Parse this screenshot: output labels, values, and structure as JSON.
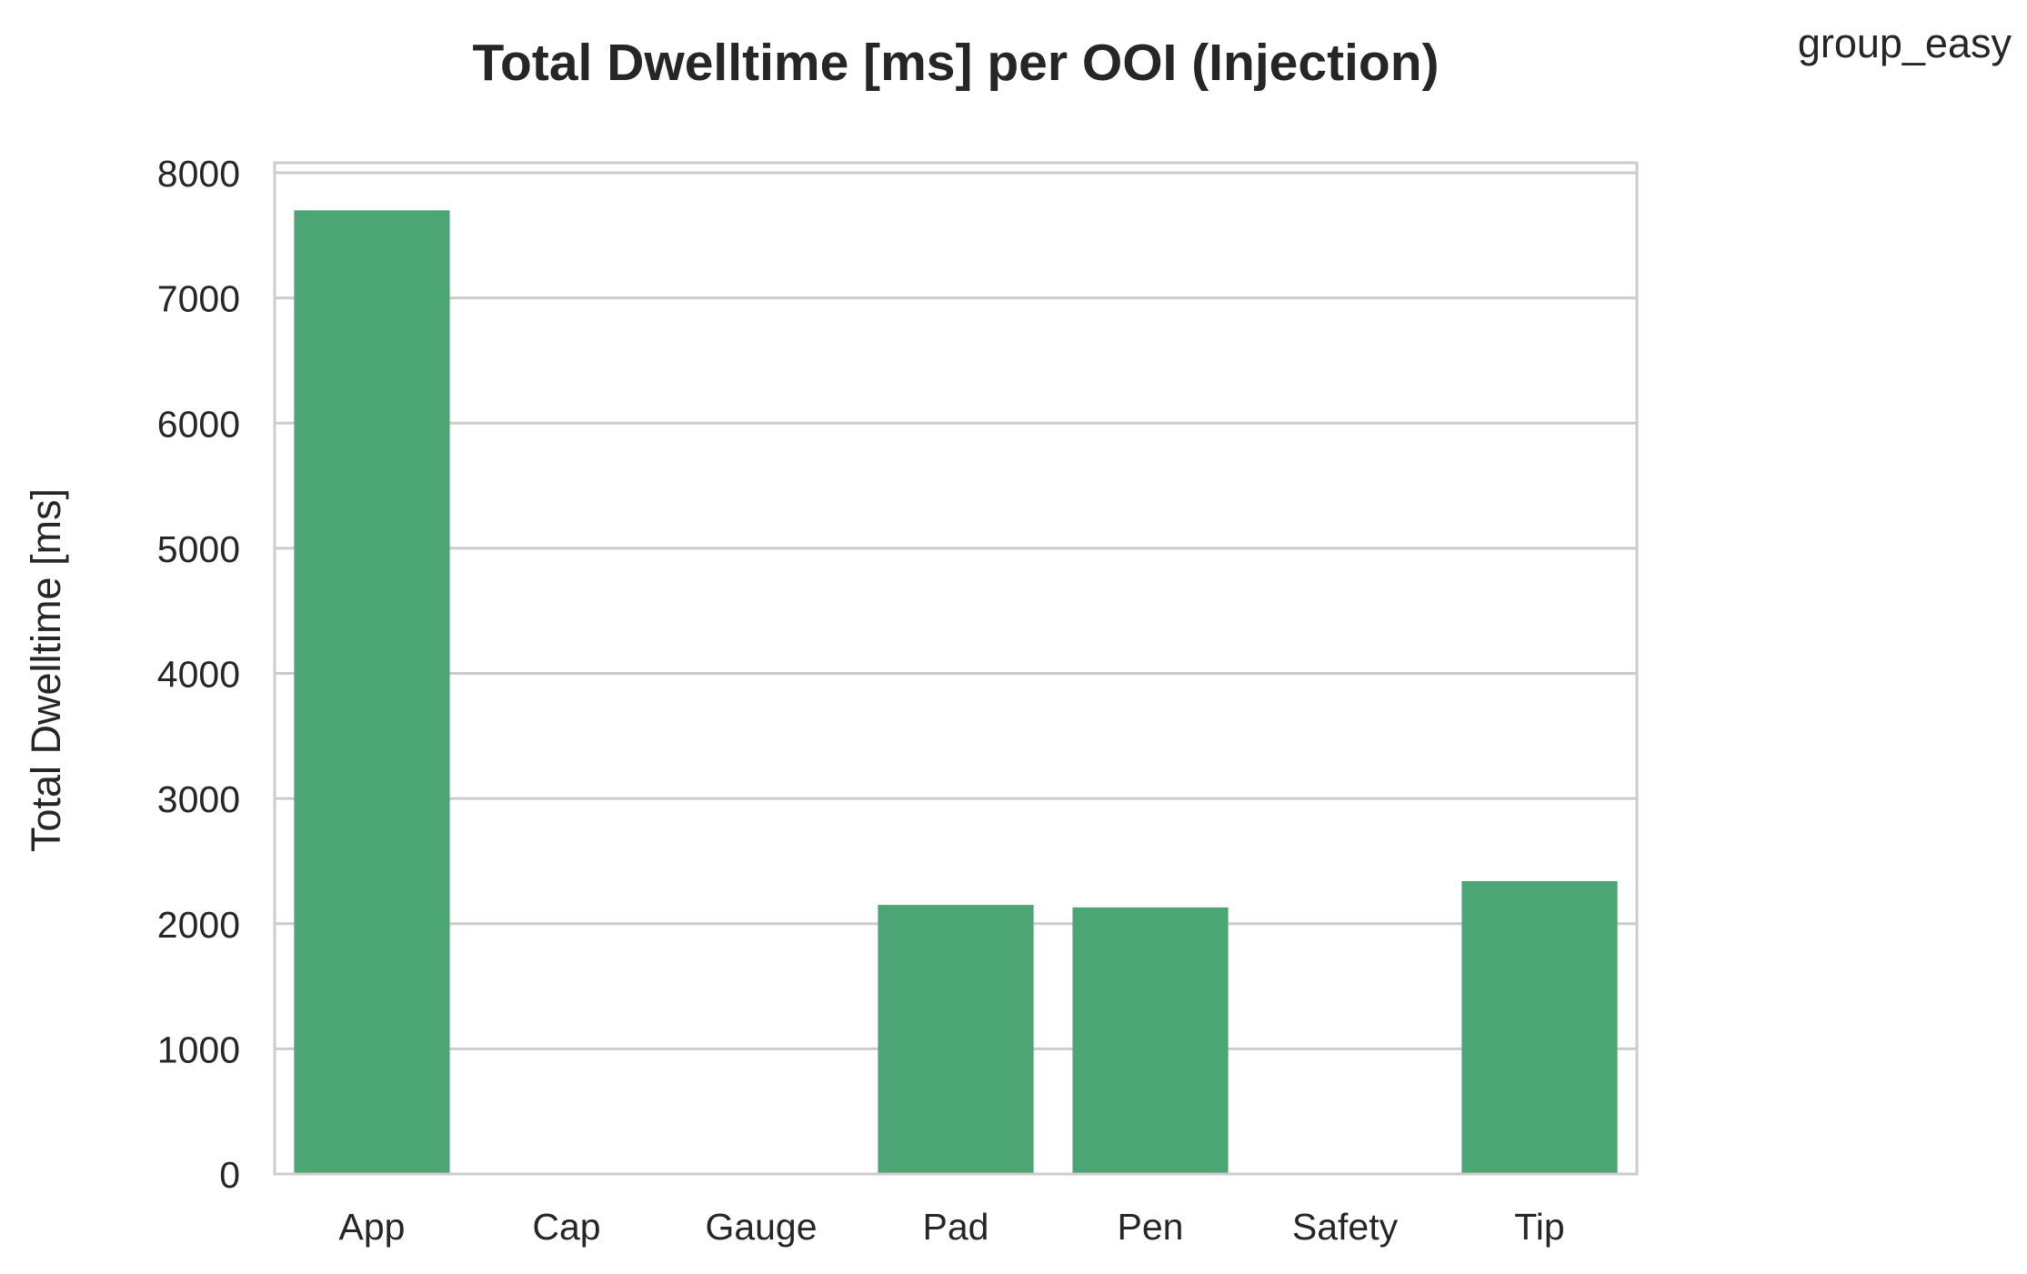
{
  "chart_data": {
    "type": "bar",
    "title": "Total Dwelltime [ms] per OOI (Injection)",
    "corner_label": "group_easy",
    "xlabel": "",
    "ylabel": "Total Dwelltime [ms]",
    "categories": [
      "App",
      "Cap",
      "Gauge",
      "Pad",
      "Pen",
      "Safety",
      "Tip"
    ],
    "values": [
      7700,
      0,
      0,
      2150,
      2130,
      0,
      2340
    ],
    "ylim": [
      0,
      8080
    ],
    "yticks": [
      0,
      1000,
      2000,
      3000,
      4000,
      5000,
      6000,
      7000,
      8000
    ],
    "grid": "horizontal",
    "legend": "none",
    "colors": {
      "bar": "#4ba574",
      "grid": "#cccccc",
      "frame": "#cccccc",
      "text": "#262626"
    }
  }
}
